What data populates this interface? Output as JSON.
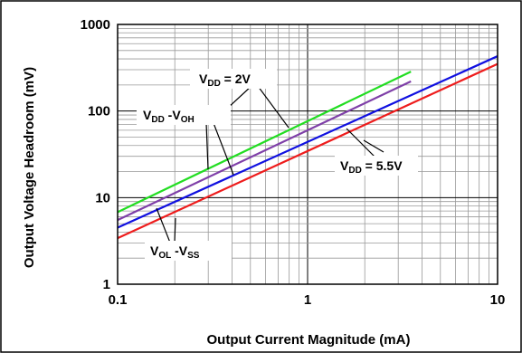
{
  "chart_data": {
    "type": "line",
    "xscale": "log",
    "yscale": "log",
    "xlim": [
      0.1,
      10
    ],
    "ylim": [
      1,
      1000
    ],
    "grid": true,
    "xlabel": "Output Current Magnitude (mA)",
    "ylabel": "Output Voltage Headroom (mV)",
    "x_ticks": [
      "0.1",
      "1",
      "10"
    ],
    "y_ticks": [
      "1",
      "10",
      "100",
      "1000"
    ],
    "series": [
      {
        "color": "#22dd22",
        "x": [
          0.1,
          3.5
        ],
        "y": [
          6.8,
          285
        ]
      },
      {
        "color": "#7f3fa8",
        "x": [
          0.1,
          3.5
        ],
        "y": [
          5.5,
          220
        ]
      },
      {
        "color": "#1010e0",
        "x": [
          0.1,
          10
        ],
        "y": [
          4.5,
          430
        ]
      },
      {
        "color": "#ee1c1c",
        "x": [
          0.1,
          10
        ],
        "y": [
          3.4,
          350
        ]
      }
    ],
    "annotations": [
      {
        "main": "V",
        "sub1": "DD",
        "rest": " = 2V"
      },
      {
        "main": "V",
        "sub1": "DD",
        "mid": " -V",
        "sub2": "OH"
      },
      {
        "main": "V",
        "sub1": "DD",
        "rest": " = 5.5V"
      },
      {
        "main": "V",
        "sub1": "OL",
        "mid": " -V",
        "sub2": "SS"
      }
    ]
  }
}
